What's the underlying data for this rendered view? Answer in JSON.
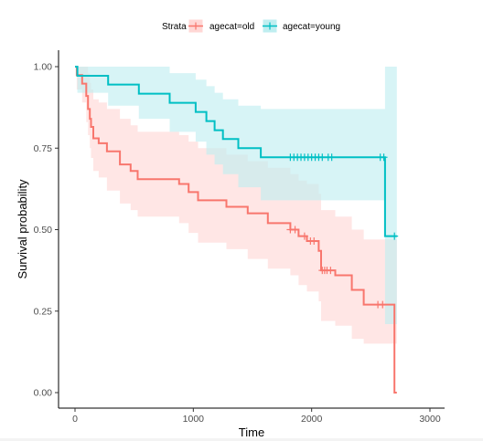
{
  "chart_data": {
    "type": "line",
    "plot_kind": "kaplan-meier survival curve with confidence bands",
    "xlabel": "Time",
    "ylabel": "Survival probability",
    "xlim": [
      0,
      3000
    ],
    "ylim": [
      0,
      1
    ],
    "x_ticks": [
      0,
      1000,
      2000,
      3000
    ],
    "y_ticks": [
      0.0,
      0.25,
      0.5,
      0.75,
      1.0
    ],
    "x_tick_labels": [
      "0",
      "1000",
      "2000",
      "3000"
    ],
    "y_tick_labels": [
      "0.00",
      "0.25",
      "0.50",
      "0.75",
      "1.00"
    ],
    "grid": false,
    "legend": {
      "position": "top",
      "title": "Strata",
      "entries": [
        "agecat=old",
        "agecat=young"
      ]
    },
    "series": [
      {
        "name": "agecat=old",
        "color": "#F8766D",
        "band_color": "#FFD7D5",
        "steps": [
          [
            0,
            1.0
          ],
          [
            15,
            0.974
          ],
          [
            60,
            0.948
          ],
          [
            95,
            0.91
          ],
          [
            110,
            0.87
          ],
          [
            125,
            0.84
          ],
          [
            135,
            0.815
          ],
          [
            155,
            0.78
          ],
          [
            200,
            0.765
          ],
          [
            270,
            0.74
          ],
          [
            380,
            0.7
          ],
          [
            470,
            0.68
          ],
          [
            530,
            0.655
          ],
          [
            880,
            0.64
          ],
          [
            960,
            0.615
          ],
          [
            1040,
            0.59
          ],
          [
            1280,
            0.57
          ],
          [
            1460,
            0.55
          ],
          [
            1630,
            0.52
          ],
          [
            1820,
            0.5
          ],
          [
            1890,
            0.48
          ],
          [
            1960,
            0.465
          ],
          [
            2060,
            0.435
          ],
          [
            2080,
            0.375
          ],
          [
            2200,
            0.36
          ],
          [
            2340,
            0.315
          ],
          [
            2440,
            0.27
          ],
          [
            2700,
            0.0
          ]
        ],
        "lower": [
          [
            0,
            1.0
          ],
          [
            15,
            0.93
          ],
          [
            60,
            0.89
          ],
          [
            95,
            0.83
          ],
          [
            110,
            0.79
          ],
          [
            125,
            0.75
          ],
          [
            135,
            0.72
          ],
          [
            155,
            0.68
          ],
          [
            200,
            0.66
          ],
          [
            270,
            0.62
          ],
          [
            380,
            0.58
          ],
          [
            470,
            0.56
          ],
          [
            530,
            0.54
          ],
          [
            880,
            0.52
          ],
          [
            960,
            0.49
          ],
          [
            1040,
            0.46
          ],
          [
            1280,
            0.44
          ],
          [
            1460,
            0.41
          ],
          [
            1630,
            0.38
          ],
          [
            1820,
            0.36
          ],
          [
            1890,
            0.33
          ],
          [
            1960,
            0.31
          ],
          [
            2060,
            0.28
          ],
          [
            2080,
            0.22
          ],
          [
            2200,
            0.205
          ],
          [
            2340,
            0.165
          ],
          [
            2440,
            0.15
          ],
          [
            2700,
            0.15
          ]
        ],
        "upper": [
          [
            0,
            1.0
          ],
          [
            15,
            1.0
          ],
          [
            60,
            1.0
          ],
          [
            95,
            1.0
          ],
          [
            110,
            0.98
          ],
          [
            125,
            0.95
          ],
          [
            135,
            0.93
          ],
          [
            155,
            0.9
          ],
          [
            200,
            0.89
          ],
          [
            270,
            0.87
          ],
          [
            380,
            0.84
          ],
          [
            470,
            0.82
          ],
          [
            530,
            0.8
          ],
          [
            880,
            0.79
          ],
          [
            960,
            0.77
          ],
          [
            1040,
            0.75
          ],
          [
            1280,
            0.73
          ],
          [
            1460,
            0.71
          ],
          [
            1630,
            0.69
          ],
          [
            1820,
            0.67
          ],
          [
            1890,
            0.65
          ],
          [
            1960,
            0.64
          ],
          [
            2060,
            0.61
          ],
          [
            2080,
            0.56
          ],
          [
            2200,
            0.54
          ],
          [
            2340,
            0.5
          ],
          [
            2440,
            0.47
          ],
          [
            2700,
            0.47
          ]
        ],
        "censored_x": [
          1820,
          1860,
          1940,
          1990,
          2020,
          2090,
          2110,
          2130,
          2160,
          2560,
          2600
        ],
        "end_x": 2720
      },
      {
        "name": "agecat=young",
        "color": "#00BFC4",
        "band_color": "#BFEEF0",
        "steps": [
          [
            0,
            1.0
          ],
          [
            20,
            0.972
          ],
          [
            280,
            0.945
          ],
          [
            540,
            0.917
          ],
          [
            800,
            0.889
          ],
          [
            1020,
            0.861
          ],
          [
            1110,
            0.833
          ],
          [
            1180,
            0.805
          ],
          [
            1250,
            0.778
          ],
          [
            1380,
            0.75
          ],
          [
            1570,
            0.722
          ],
          [
            2620,
            0.48
          ]
        ],
        "lower": [
          [
            0,
            1.0
          ],
          [
            20,
            0.92
          ],
          [
            280,
            0.88
          ],
          [
            540,
            0.84
          ],
          [
            800,
            0.8
          ],
          [
            1020,
            0.77
          ],
          [
            1110,
            0.73
          ],
          [
            1180,
            0.7
          ],
          [
            1250,
            0.67
          ],
          [
            1380,
            0.63
          ],
          [
            1570,
            0.59
          ],
          [
            2620,
            0.21
          ]
        ],
        "upper": [
          [
            0,
            1.0
          ],
          [
            20,
            1.0
          ],
          [
            280,
            1.0
          ],
          [
            540,
            1.0
          ],
          [
            800,
            0.98
          ],
          [
            1020,
            0.96
          ],
          [
            1110,
            0.94
          ],
          [
            1180,
            0.92
          ],
          [
            1250,
            0.9
          ],
          [
            1380,
            0.88
          ],
          [
            1570,
            0.87
          ],
          [
            2620,
            1.0
          ]
        ],
        "censored_x": [
          1820,
          1850,
          1880,
          1910,
          1940,
          1970,
          2000,
          2030,
          2060,
          2090,
          2140,
          2170,
          2580,
          2610,
          2700
        ],
        "end_x": 2720
      }
    ]
  }
}
